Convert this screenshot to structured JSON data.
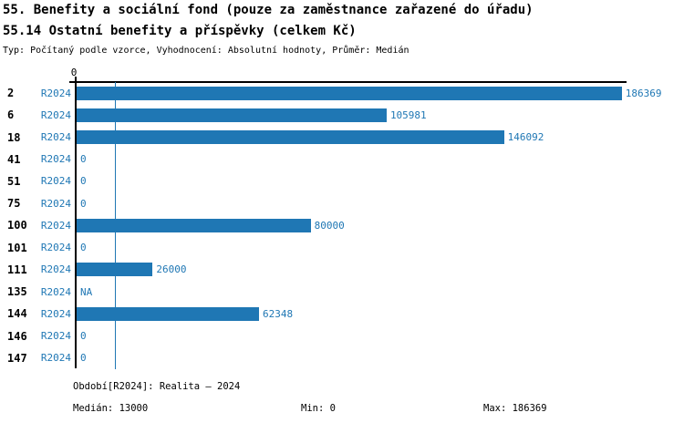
{
  "header": {
    "title1": "55. Benefity a sociální fond (pouze za zaměstnance zařazené do úřadu)",
    "title2": "55.14 Ostatní benefity a příspěvky (celkem Kč)",
    "meta": "Typ: Počítaný podle vzorce, Vyhodnocení: Absolutní hodnoty, Průměr: Medián"
  },
  "chart_data": {
    "type": "bar",
    "orientation": "horizontal",
    "series_label": "R2024",
    "categories": [
      "2",
      "6",
      "18",
      "41",
      "51",
      "75",
      "100",
      "101",
      "111",
      "135",
      "144",
      "146",
      "147"
    ],
    "values": [
      186369,
      105981,
      146092,
      0,
      0,
      0,
      80000,
      0,
      26000,
      null,
      62348,
      0,
      0
    ],
    "value_labels": [
      "186369",
      "105981",
      "146092",
      "0",
      "0",
      "0",
      "80000",
      "0",
      "26000",
      "NA",
      "62348",
      "0",
      "0"
    ],
    "xlim": [
      0,
      186369
    ],
    "x_tick_labels": [
      "0"
    ],
    "median": 13000,
    "grid": false,
    "legend": "none",
    "bar_color": "#1f77b4",
    "median_line_color": "#1f77b4",
    "label_color": "#1f77b4",
    "axis_color": "#000000"
  },
  "footer": {
    "period": "Období[R2024]: Realita – 2024",
    "median": "Medián: 13000",
    "min": "Min: 0",
    "max": "Max: 186369"
  }
}
